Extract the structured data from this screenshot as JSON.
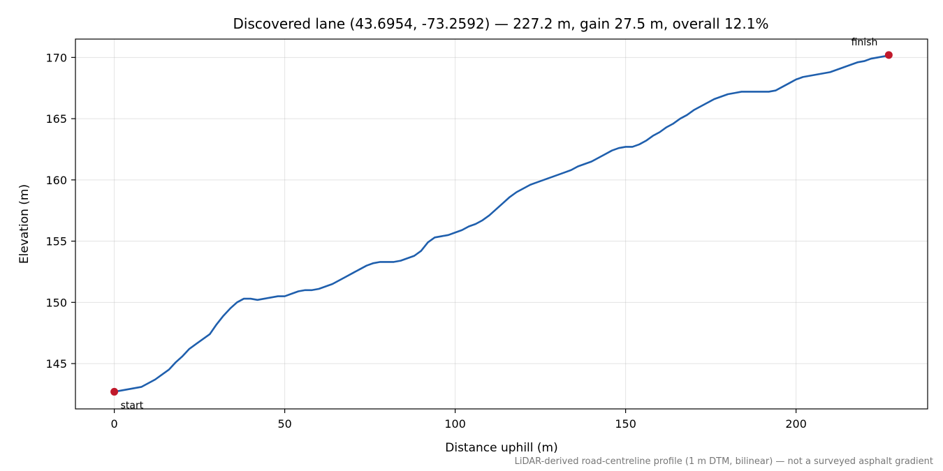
{
  "chart_data": {
    "type": "line",
    "title": "Discovered lane (43.6954, -73.2592) — 227.2 m, gain 27.5 m, overall 12.1%",
    "xlabel": "Distance uphill (m)",
    "ylabel": "Elevation (m)",
    "footnote": "LiDAR-derived road-centreline profile (1 m DTM, bilinear) — not a surveyed asphalt gradient",
    "xlim": [
      -11.4,
      238.6
    ],
    "ylim": [
      141.3,
      171.5
    ],
    "xticks": [
      0,
      50,
      100,
      150,
      200
    ],
    "yticks": [
      145,
      150,
      155,
      160,
      165,
      170
    ],
    "grid": true,
    "line_color": "#1f5fad",
    "marker_color": "#c0192b",
    "series": [
      {
        "x": [
          0,
          2,
          4,
          6,
          8,
          10,
          12,
          14,
          16,
          18,
          20,
          22,
          24,
          26,
          28,
          30,
          32,
          34,
          36,
          38,
          40,
          42,
          44,
          46,
          48,
          50,
          52,
          54,
          56,
          58,
          60,
          62,
          64,
          66,
          68,
          70,
          72,
          74,
          76,
          78,
          80,
          82,
          84,
          86,
          88,
          90,
          92,
          94,
          96,
          98,
          100,
          102,
          104,
          106,
          108,
          110,
          112,
          114,
          116,
          118,
          120,
          122,
          124,
          126,
          128,
          130,
          132,
          134,
          136,
          138,
          140,
          142,
          144,
          146,
          148,
          150,
          152,
          154,
          156,
          158,
          160,
          162,
          164,
          166,
          168,
          170,
          172,
          174,
          176,
          178,
          180,
          182,
          184,
          186,
          188,
          190,
          192,
          194,
          196,
          198,
          200,
          202,
          204,
          206,
          208,
          210,
          212,
          214,
          216,
          218,
          220,
          222,
          224,
          226,
          227.2
        ],
        "y": [
          142.7,
          142.8,
          142.9,
          143.0,
          143.1,
          143.4,
          143.7,
          144.1,
          144.5,
          145.1,
          145.6,
          146.2,
          146.6,
          147.0,
          147.4,
          148.2,
          148.9,
          149.5,
          150.0,
          150.3,
          150.3,
          150.2,
          150.3,
          150.4,
          150.5,
          150.5,
          150.7,
          150.9,
          151.0,
          151.0,
          151.1,
          151.3,
          151.5,
          151.8,
          152.1,
          152.4,
          152.7,
          153.0,
          153.2,
          153.3,
          153.3,
          153.3,
          153.4,
          153.6,
          153.8,
          154.2,
          154.9,
          155.3,
          155.4,
          155.5,
          155.7,
          155.9,
          156.2,
          156.4,
          156.7,
          157.1,
          157.6,
          158.1,
          158.6,
          159.0,
          159.3,
          159.6,
          159.8,
          160.0,
          160.2,
          160.4,
          160.6,
          160.8,
          161.1,
          161.3,
          161.5,
          161.8,
          162.1,
          162.4,
          162.6,
          162.7,
          162.7,
          162.9,
          163.2,
          163.6,
          163.9,
          164.3,
          164.6,
          165.0,
          165.3,
          165.7,
          166.0,
          166.3,
          166.6,
          166.8,
          167.0,
          167.1,
          167.2,
          167.2,
          167.2,
          167.2,
          167.2,
          167.3,
          167.6,
          167.9,
          168.2,
          168.4,
          168.5,
          168.6,
          168.7,
          168.8,
          169.0,
          169.2,
          169.4,
          169.6,
          169.7,
          169.9,
          170.0,
          170.1,
          170.2
        ]
      }
    ],
    "annotations": [
      {
        "label": "start",
        "x": 0,
        "y": 142.7
      },
      {
        "label": "finish",
        "x": 227.2,
        "y": 170.2
      }
    ]
  }
}
